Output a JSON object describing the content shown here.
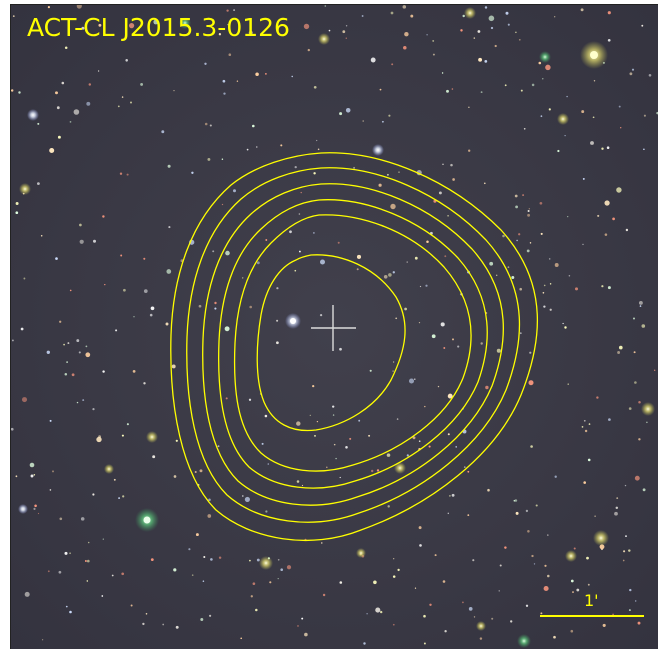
{
  "title": "ACT-CL J2015.3-0126",
  "scale_bar": {
    "label": "1'"
  },
  "colors": {
    "annotation": "#ffff00",
    "crosshair": "#dddddd",
    "background": "#3a3a46"
  },
  "contours": {
    "count": 6
  },
  "marker": {
    "type": "crosshair"
  }
}
